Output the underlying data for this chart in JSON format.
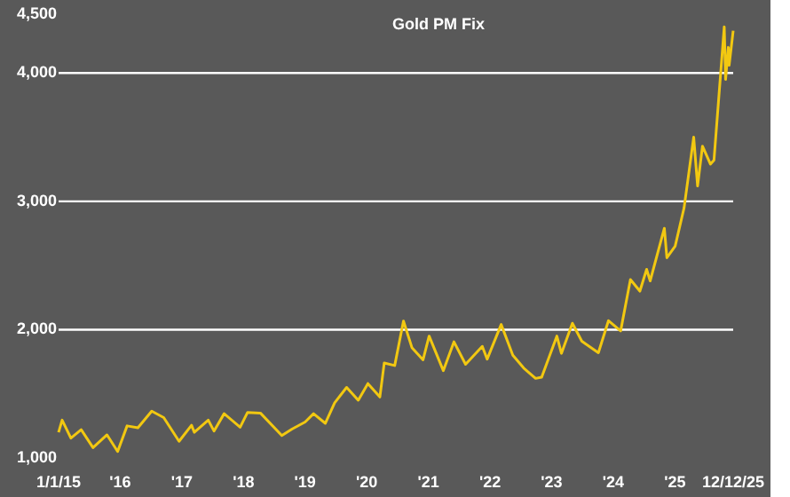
{
  "chart_data": {
    "type": "line",
    "title": "Gold PM Fix",
    "x": [
      "2015-01-01",
      "2015-01-22",
      "2015-03-15",
      "2015-05-15",
      "2015-07-24",
      "2015-10-15",
      "2015-12-17",
      "2016-02-11",
      "2016-04-15",
      "2016-07-06",
      "2016-09-15",
      "2016-12-15",
      "2017-02-27",
      "2017-03-15",
      "2017-06-06",
      "2017-07-10",
      "2017-09-08",
      "2017-12-12",
      "2018-01-25",
      "2018-04-11",
      "2018-08-16",
      "2018-10-15",
      "2019-01-01",
      "2019-02-20",
      "2019-05-01",
      "2019-06-25",
      "2019-09-04",
      "2019-11-12",
      "2020-01-08",
      "2020-03-19",
      "2020-04-14",
      "2020-06-15",
      "2020-08-06",
      "2020-09-25",
      "2020-11-30",
      "2021-01-05",
      "2021-03-30",
      "2021-06-01",
      "2021-08-09",
      "2021-11-16",
      "2021-12-15",
      "2022-03-08",
      "2022-05-16",
      "2022-07-20",
      "2022-09-28",
      "2022-11-03",
      "2023-02-01",
      "2023-02-28",
      "2023-05-04",
      "2023-06-29",
      "2023-10-05",
      "2023-12-04",
      "2024-02-14",
      "2024-04-12",
      "2024-06-07",
      "2024-07-17",
      "2024-08-07",
      "2024-10-30",
      "2024-11-14",
      "2025-01-02",
      "2025-02-24",
      "2025-04-22",
      "2025-05-15",
      "2025-06-13",
      "2025-07-30",
      "2025-08-20",
      "2025-10-20",
      "2025-10-28",
      "2025-11-13",
      "2025-11-18",
      "2025-12-12"
    ],
    "series": [
      {
        "color": "#f2c811",
        "values": [
          1200,
          1295,
          1155,
          1220,
          1080,
          1180,
          1050,
          1250,
          1235,
          1365,
          1315,
          1130,
          1255,
          1200,
          1295,
          1210,
          1345,
          1240,
          1355,
          1350,
          1175,
          1225,
          1280,
          1345,
          1270,
          1430,
          1550,
          1450,
          1580,
          1475,
          1740,
          1720,
          2067,
          1860,
          1765,
          1950,
          1680,
          1905,
          1730,
          1870,
          1770,
          2040,
          1800,
          1700,
          1620,
          1630,
          1950,
          1815,
          2050,
          1910,
          1820,
          2070,
          1990,
          2390,
          2300,
          2470,
          2380,
          2790,
          2560,
          2650,
          2950,
          3500,
          3120,
          3430,
          3290,
          3320,
          4360,
          3950,
          4200,
          4060,
          4330
        ]
      }
    ],
    "xlim": [
      "2015-01-01",
      "2025-12-12"
    ],
    "xticks": [
      {
        "value": "2015-01-01",
        "label": "1/1/15"
      },
      {
        "value": "2016-01-01",
        "label": "'16"
      },
      {
        "value": "2017-01-01",
        "label": "'17"
      },
      {
        "value": "2018-01-01",
        "label": "'18"
      },
      {
        "value": "2019-01-01",
        "label": "'19"
      },
      {
        "value": "2020-01-01",
        "label": "'20"
      },
      {
        "value": "2021-01-01",
        "label": "'21"
      },
      {
        "value": "2022-01-01",
        "label": "'22"
      },
      {
        "value": "2023-01-01",
        "label": "'23"
      },
      {
        "value": "2024-01-01",
        "label": "'24"
      },
      {
        "value": "2025-01-01",
        "label": "'25"
      },
      {
        "value": "2025-12-12",
        "label": "12/12/25"
      }
    ],
    "ylim": [
      1000,
      4500
    ],
    "yticks": [
      {
        "value": 1000,
        "label": "1,000"
      },
      {
        "value": 2000,
        "label": "2,000"
      },
      {
        "value": 3000,
        "label": "3,000"
      },
      {
        "value": 4000,
        "label": "4,000"
      },
      {
        "value": 4500,
        "label": "4,500"
      }
    ],
    "grid": "y"
  }
}
